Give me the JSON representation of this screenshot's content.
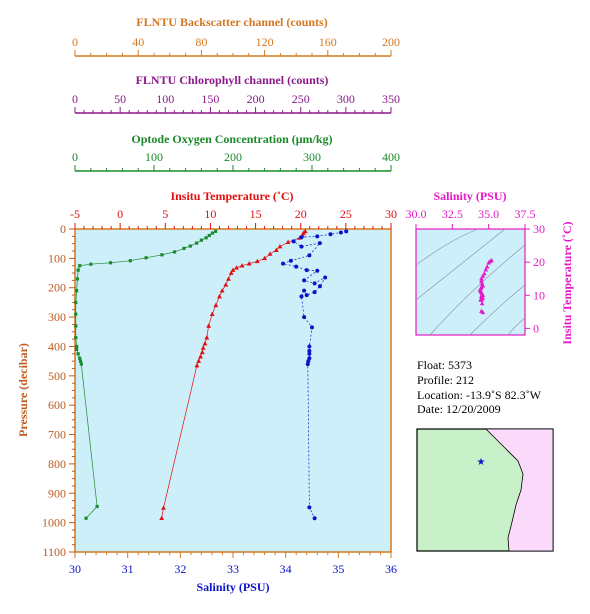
{
  "colors": {
    "backscatter": "#d4781f",
    "chlorophyll": "#8b1a8b",
    "oxygen": "#1a8a2a",
    "temperature": "#e01010",
    "salinity": "#0a14c8",
    "pressure": "#c05a1e",
    "ts_panel": "#e619c8",
    "plot_bg": "#cdeffa",
    "plot_border": "#d4781f"
  },
  "chart_data": [
    {
      "id": "backscatter-axis",
      "type": "axis",
      "title": "FLNTU Backscatter channel (counts)",
      "range": [
        0,
        200
      ],
      "ticks": [
        "0",
        "40",
        "80",
        "120",
        "160",
        "200"
      ]
    },
    {
      "id": "chlorophyll-axis",
      "type": "axis",
      "title": "FLNTU Chlorophyll channel (counts)",
      "range": [
        0,
        350
      ],
      "ticks": [
        "0",
        "50",
        "100",
        "150",
        "200",
        "250",
        "300",
        "350"
      ]
    },
    {
      "id": "main-profile",
      "type": "scatter",
      "xlabel": "Salinity (PSU)",
      "ylabel": "Pressure (decibar)",
      "xlim": [
        30,
        36
      ],
      "ylim": [
        0,
        1100
      ],
      "y_inverted": true,
      "x_ticks": [
        "30",
        "31",
        "32",
        "33",
        "34",
        "35",
        "36"
      ],
      "y_ticks": [
        "0",
        "100",
        "200",
        "300",
        "400",
        "500",
        "600",
        "700",
        "800",
        "900",
        "1000",
        "1100"
      ],
      "top_axes": [
        {
          "title": "Optode Oxygen Concentration (μm/kg)",
          "range": [
            0,
            400
          ],
          "ticks": [
            "0",
            "100",
            "200",
            "300",
            "400"
          ]
        },
        {
          "title": "Insitu Temperature (˚C)",
          "range": [
            -5,
            30
          ],
          "ticks": [
            "-5",
            "0",
            "5",
            "10",
            "15",
            "20",
            "25",
            "30"
          ]
        }
      ],
      "series": [
        {
          "axis": "oxygen",
          "marker": "square",
          "x": [
            178,
            174,
            170,
            166,
            160,
            154,
            146,
            138,
            126,
            110,
            90,
            70,
            45,
            20,
            6,
            4,
            3,
            2,
            1,
            1,
            1,
            1,
            2,
            2,
            4,
            6,
            7,
            8,
            28,
            14
          ],
          "y": [
            8,
            14,
            22,
            30,
            38,
            48,
            58,
            66,
            78,
            88,
            98,
            108,
            115,
            120,
            125,
            140,
            170,
            210,
            250,
            290,
            330,
            370,
            400,
            410,
            425,
            440,
            450,
            460,
            945,
            985
          ]
        },
        {
          "axis": "temperature",
          "marker": "triangle",
          "x": [
            20.5,
            20.3,
            20.2,
            19.9,
            18.6,
            17.7,
            17.3,
            16.6,
            16.0,
            15.2,
            14.3,
            13.5,
            12.9,
            12.5,
            12.3,
            12.0,
            11.7,
            11.3,
            11.0,
            10.6,
            10.2,
            9.8,
            9.6,
            9.4,
            9.2,
            9.1,
            8.9,
            8.7,
            8.5,
            4.8,
            4.6
          ],
          "y": [
            8,
            14,
            22,
            30,
            45,
            60,
            72,
            85,
            100,
            110,
            118,
            125,
            132,
            140,
            150,
            170,
            190,
            210,
            230,
            260,
            290,
            330,
            370,
            390,
            405,
            420,
            435,
            450,
            465,
            950,
            985
          ]
        },
        {
          "axis": "salinity",
          "marker": "circle",
          "x": [
            35.15,
            35.05,
            34.85,
            34.6,
            34.3,
            34.15,
            34.3,
            34.65,
            34.45,
            34.1,
            33.95,
            34.2,
            34.4,
            34.6,
            34.35,
            34.55,
            34.75,
            34.65,
            34.55,
            34.4,
            34.35,
            34.3,
            34.35,
            34.5,
            34.45,
            34.45,
            34.45,
            34.45,
            34.43,
            34.42,
            34.45,
            34.55
          ],
          "y": [
            8,
            12,
            18,
            25,
            28,
            42,
            60,
            48,
            90,
            108,
            118,
            128,
            140,
            142,
            175,
            185,
            165,
            195,
            215,
            225,
            210,
            230,
            300,
            335,
            400,
            415,
            425,
            440,
            450,
            460,
            948,
            985
          ]
        }
      ]
    },
    {
      "id": "ts-diagram",
      "type": "scatter",
      "title": "Salinity (PSU)",
      "ylabel": "Insitu Temperature (˚C)",
      "xlim": [
        30,
        37.5
      ],
      "ylim": [
        -2,
        30
      ],
      "x_ticks": [
        "30.0",
        "32.5",
        "35.0",
        "37.5"
      ],
      "y_ticks": [
        "0",
        "10",
        "20",
        "30"
      ],
      "series": [
        {
          "marker": "triangle",
          "x": [
            35.2,
            35.1,
            35.0,
            34.9,
            34.8,
            34.7,
            34.6,
            34.5,
            34.5,
            34.55,
            34.6,
            34.5,
            34.45,
            34.4,
            34.45,
            34.5,
            34.55,
            34.6,
            34.5,
            34.55,
            34.6,
            34.5,
            34.45,
            34.5,
            34.55,
            34.5,
            34.6
          ],
          "y": [
            20.5,
            20.2,
            19.8,
            18.6,
            17.7,
            16.5,
            15.8,
            15.0,
            14.3,
            13.5,
            12.8,
            12.4,
            12.0,
            11.6,
            11.2,
            10.8,
            10.4,
            10.0,
            9.7,
            9.4,
            9.1,
            8.9,
            8.7,
            8.5,
            7.5,
            5.2,
            4.8
          ]
        }
      ]
    }
  ],
  "info": {
    "float": "Float:  5373",
    "profile": "Profile:  212",
    "location": "Location:  -13.9˚S  82.3˚W",
    "date": "Date:  12/20/2009"
  },
  "map": {
    "marker": "★"
  }
}
